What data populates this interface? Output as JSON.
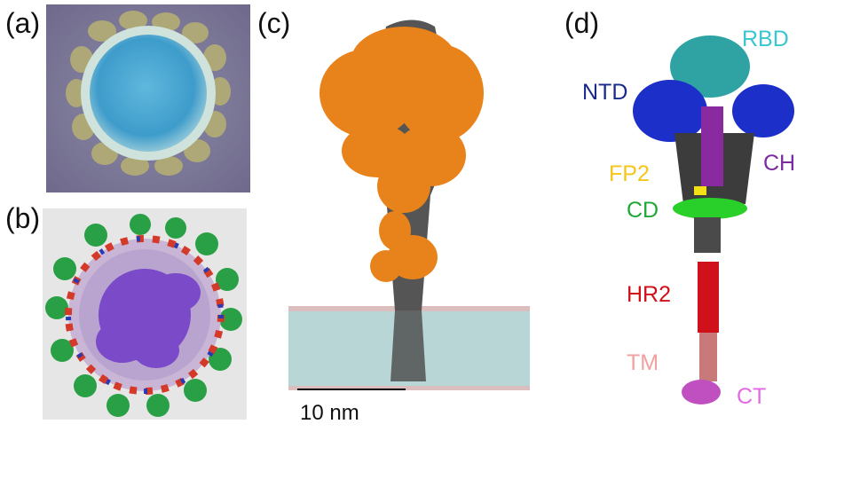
{
  "panels": {
    "a": {
      "label": "(a)"
    },
    "b": {
      "label": "(b)"
    },
    "c": {
      "label": "(c)",
      "scale_bar": "10 nm"
    },
    "d": {
      "label": "(d)"
    }
  },
  "domains": [
    {
      "name": "RBD",
      "color": "#39c6d0"
    },
    {
      "name": "NTD",
      "color": "#1a2a8a"
    },
    {
      "name": "CH",
      "color": "#7b2aa0"
    },
    {
      "name": "FP2",
      "color": "#f5c518"
    },
    {
      "name": "CD",
      "color": "#1fa83a"
    },
    {
      "name": "HR2",
      "color": "#d0101a"
    },
    {
      "name": "TM",
      "color": "#f2a0a0"
    },
    {
      "name": "CT",
      "color": "#e26ae2"
    }
  ]
}
